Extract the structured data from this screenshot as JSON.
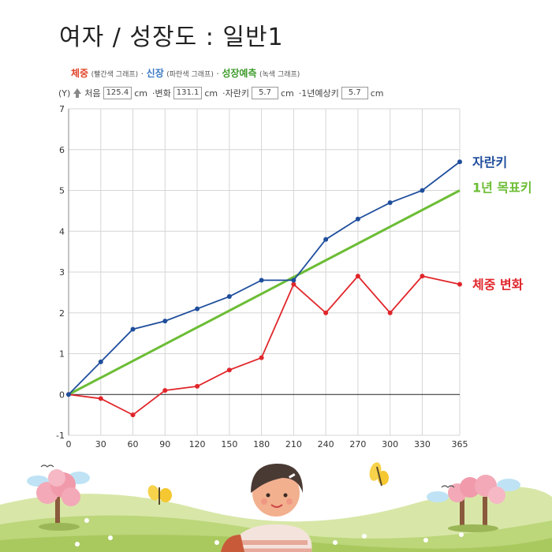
{
  "title": "여자 / 성장도 : 일반1",
  "legend": {
    "weight_label": "체중",
    "weight_note": "(빨간색 그래프)",
    "height_label": "신장",
    "height_note": "(파란색 그래프)",
    "predict_label": "성장예측",
    "predict_note": "(녹색 그래프)",
    "dot": "·"
  },
  "controls": {
    "y_label": "(Y)",
    "start_label": "처음",
    "start_value": "125.4",
    "change_label": "변화",
    "change_value": "131.1",
    "grow_label": "자란키",
    "grow_value": "5.7",
    "expect_label": "1년예상키",
    "expect_value": "5.7",
    "unit": "cm",
    "bullet": "·"
  },
  "chart_data": {
    "type": "line",
    "title": "",
    "xlabel": "",
    "ylabel": "",
    "xlim": [
      0,
      365
    ],
    "ylim": [
      -1,
      7
    ],
    "x": [
      0,
      30,
      60,
      90,
      120,
      150,
      180,
      210,
      240,
      270,
      300,
      330,
      365
    ],
    "x_ticks": [
      0,
      30,
      60,
      90,
      120,
      150,
      180,
      210,
      240,
      270,
      300,
      330,
      365
    ],
    "y_ticks": [
      -1,
      0,
      1,
      2,
      3,
      4,
      5,
      6,
      7
    ],
    "grid": true,
    "series": [
      {
        "name": "자란키",
        "color": "#1f4e9c",
        "values": [
          0,
          0.8,
          1.6,
          1.8,
          2.1,
          2.4,
          2.8,
          2.8,
          3.8,
          4.3,
          4.7,
          5.0,
          5.7
        ],
        "markers": true
      },
      {
        "name": "1년 목표키",
        "color": "#6cbd35",
        "values": [
          0,
          5.0
        ],
        "x": [
          0,
          365
        ],
        "markers": false
      },
      {
        "name": "체중 변화",
        "color": "#e0262b",
        "values": [
          0,
          -0.1,
          -0.5,
          0.1,
          0.2,
          0.6,
          0.9,
          2.7,
          2.0,
          2.9,
          2.0,
          2.9,
          2.7
        ],
        "markers": true
      }
    ]
  },
  "colors": {
    "weight": "#e0452b",
    "height": "#3a78c4",
    "predict": "#3d9b2a"
  }
}
